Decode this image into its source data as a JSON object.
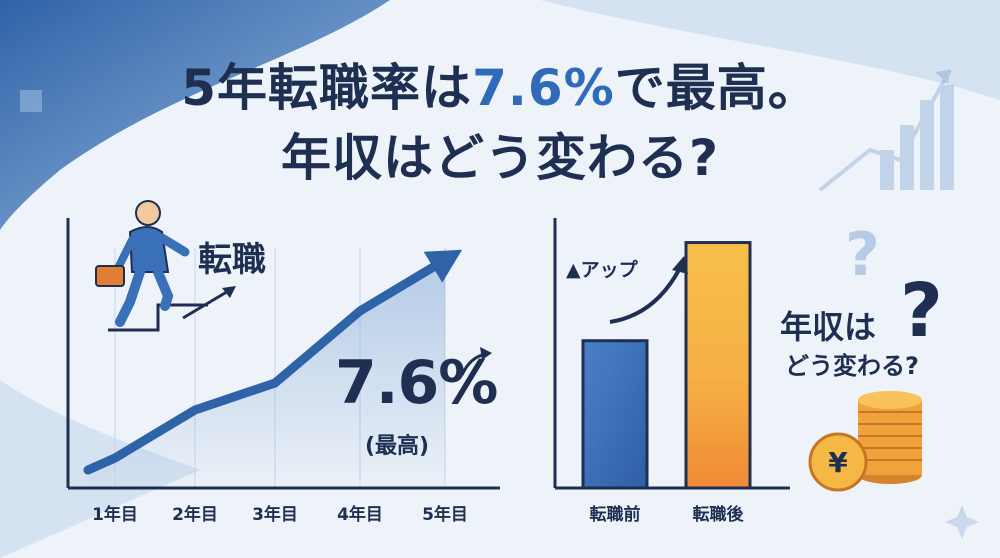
{
  "title": {
    "line1_pre": "5年転職率は",
    "line1_accent": "7.6%",
    "line1_post": "で最高。",
    "line2": "年収はどう変わる?"
  },
  "left_panel": {
    "person_label": "転職",
    "big_value": "7.6%",
    "big_value_note": "(最高)"
  },
  "right_panel": {
    "up_label": "▲アップ",
    "question_line1": "年収は",
    "question_mark": "?",
    "question_line2": "どう変わる?",
    "coin_symbol": "¥"
  },
  "colors": {
    "navy": "#1e2f52",
    "blue": "#2f6bb8",
    "orange": "#f39a3c",
    "yellow": "#f7bf4a"
  },
  "chart_data": [
    {
      "type": "line",
      "categories": [
        "1年目",
        "2年目",
        "3年目",
        "4年目",
        "5年目"
      ],
      "series": [
        {
          "values": [
            1.0,
            2.6,
            3.5,
            5.9,
            7.6
          ]
        }
      ],
      "ylim": [
        0,
        9
      ],
      "grid": true,
      "title": "",
      "xlabel": "",
      "ylabel": ""
    },
    {
      "type": "bar",
      "categories": [
        "転職前",
        "転職後"
      ],
      "values": [
        6,
        10
      ],
      "ylim": [
        0,
        11
      ],
      "title": "",
      "xlabel": "",
      "ylabel": ""
    }
  ]
}
